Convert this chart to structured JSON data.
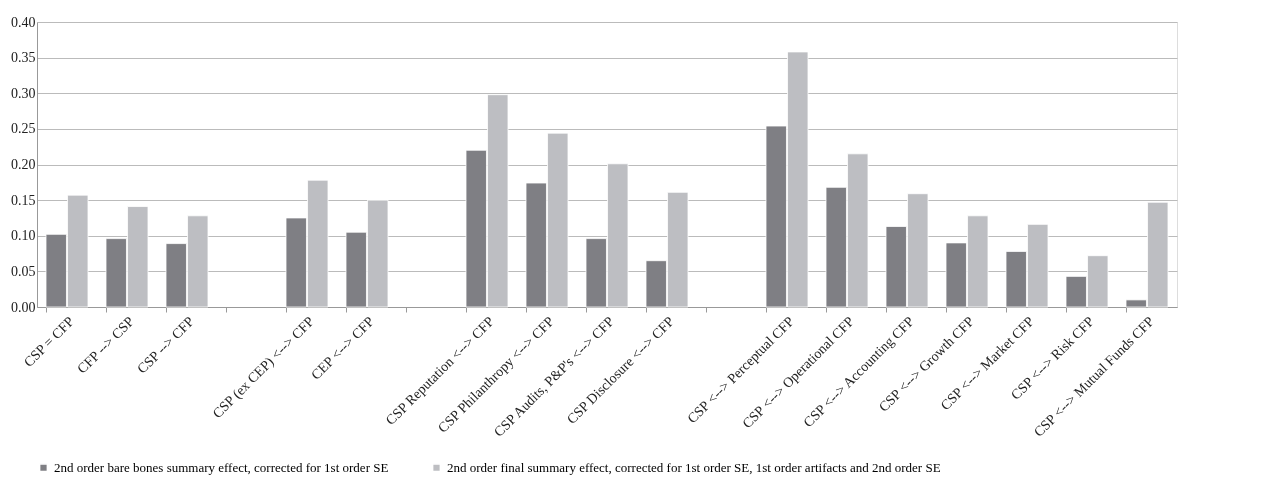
{
  "chart_data": {
    "type": "bar",
    "categories": [
      "CSP = CFP",
      "CFP --> CSP",
      "CSP --> CFP",
      null,
      "CSP (ex CEP) <--> CFP",
      "CEP <--> CFP",
      null,
      "CSP Reputation <--> CFP",
      "CSP Philanthropy <--> CFP",
      "CSP Audits, P&P's  <--> CFP",
      "CSP Disclosure  <--> CFP",
      null,
      "CSP <--> Perceptual CFP",
      "CSP <--> Operational CFP",
      "CSP <--> Accounting CFP",
      "CSP <--> Growth CFP",
      "CSP <--> Market CFP",
      "CSP <--> Risk CFP",
      "CSP <--> Mutual Funds CFP"
    ],
    "series": [
      {
        "name": "2nd order bare bones summary effect, corrected for 1st order SE",
        "color": "#7f7f84",
        "values": [
          0.102,
          0.096,
          0.089,
          null,
          0.125,
          0.105,
          null,
          0.22,
          0.174,
          0.096,
          0.065,
          null,
          0.254,
          0.168,
          0.113,
          0.09,
          0.078,
          0.043,
          0.01
        ]
      },
      {
        "name": "2nd order final summary effect, corrected for 1st order SE, 1st order artifacts and 2nd order SE",
        "color": "#bdbec2",
        "values": [
          0.157,
          0.141,
          0.128,
          null,
          0.178,
          0.15,
          null,
          0.298,
          0.244,
          0.201,
          0.161,
          null,
          0.358,
          0.215,
          0.159,
          0.128,
          0.116,
          0.072,
          0.147
        ]
      }
    ],
    "ylim": [
      0,
      0.4
    ],
    "yticks": [
      {
        "value": 0,
        "label": "0.00"
      },
      {
        "value": 0.05,
        "label": "0.05"
      },
      {
        "value": 0.1,
        "label": "0.10"
      },
      {
        "value": 0.15,
        "label": "0.15"
      },
      {
        "value": 0.2,
        "label": "0.20"
      },
      {
        "value": 0.25,
        "label": "0.25"
      },
      {
        "value": 0.3,
        "label": "0.30"
      },
      {
        "value": 0.35,
        "label": "0.35"
      },
      {
        "value": 0.4,
        "label": "0.40"
      }
    ],
    "grid": "y",
    "legend": "bottom"
  }
}
